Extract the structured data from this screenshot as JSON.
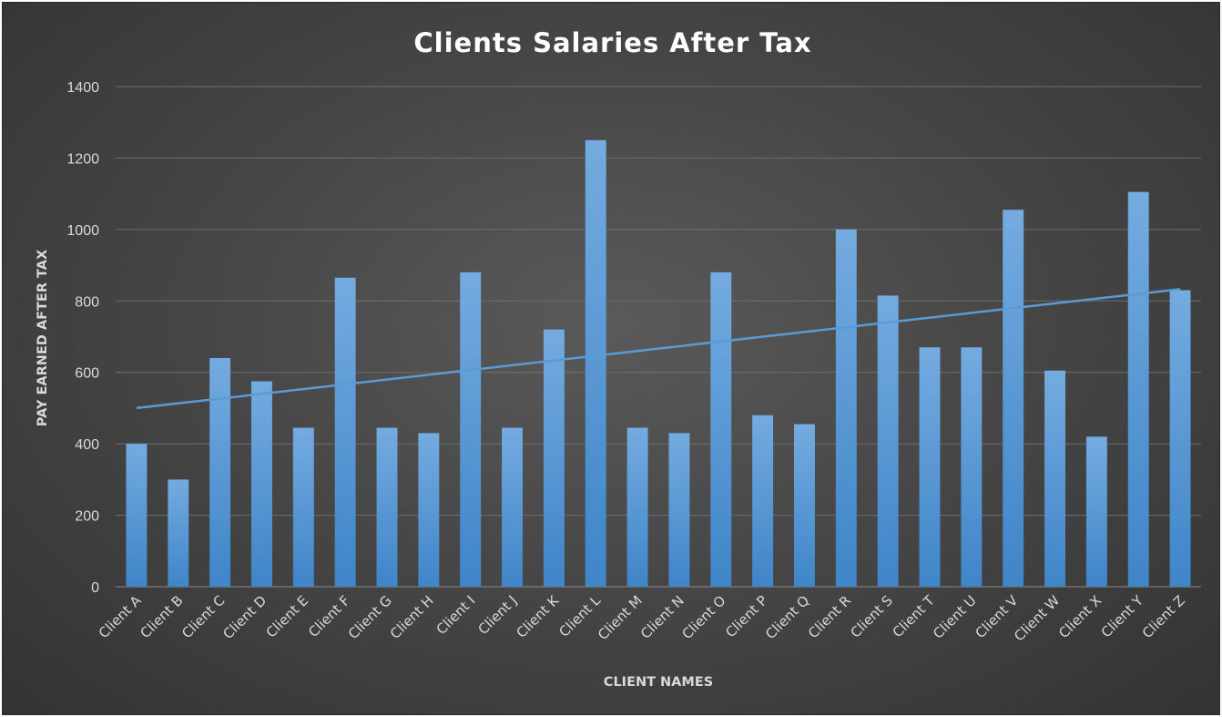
{
  "chart_data": {
    "type": "bar",
    "title": "Clients Salaries After Tax",
    "xlabel": "CLIENT NAMES",
    "ylabel": "PAY EARNED AFTER TAX",
    "ylim": [
      0,
      1400
    ],
    "yticks": [
      0,
      200,
      400,
      600,
      800,
      1000,
      1200,
      1400
    ],
    "grid": true,
    "legend": "none",
    "categories": [
      "Client A",
      "Client B",
      "Client C",
      "Client D",
      "Client E",
      "Client F",
      "Client G",
      "Client H",
      "Client I",
      "Client J",
      "Client K",
      "Client L",
      "Client M",
      "Client N",
      "Client O",
      "Client P",
      "Client Q",
      "Client R",
      "Client S",
      "Client T",
      "Client U",
      "Client V",
      "Client W",
      "Client X",
      "Client Y",
      "Client Z"
    ],
    "values": [
      400,
      300,
      640,
      575,
      445,
      865,
      445,
      430,
      880,
      445,
      720,
      1250,
      445,
      430,
      880,
      480,
      455,
      1000,
      815,
      670,
      670,
      1055,
      605,
      420,
      1105,
      830
    ],
    "trendline": {
      "type": "linear",
      "start": 500,
      "end": 833
    },
    "colors": {
      "bar": "#5b9bd5",
      "trendline": "#5b9bd5",
      "grid": "#6e6e6e"
    }
  }
}
